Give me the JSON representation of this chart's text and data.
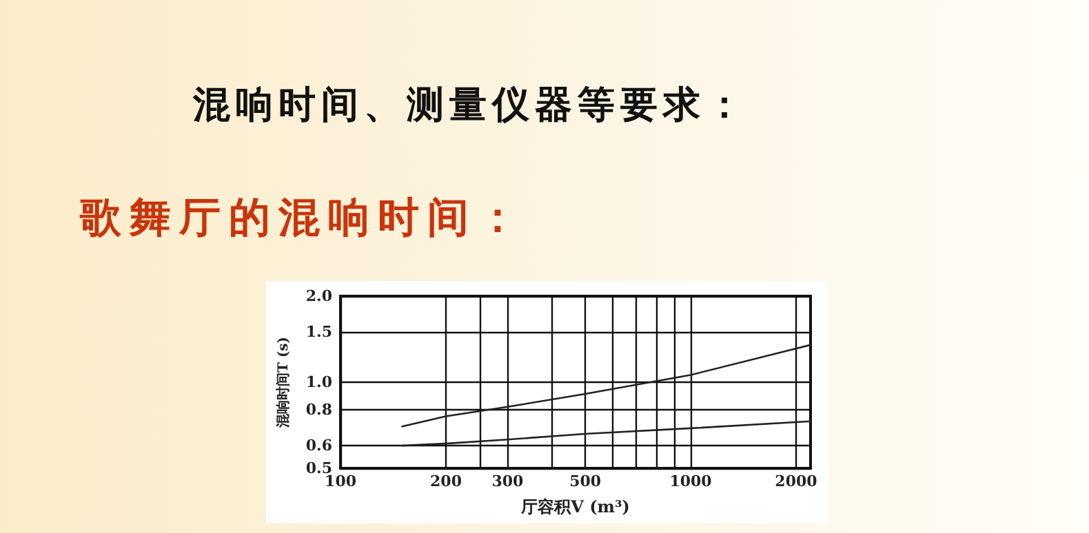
{
  "chart_data": {
    "type": "line",
    "title": "混响时间、测量仪器等要求：",
    "subtitle": "歌舞厅的混响时间：",
    "xlabel": "厅容积V (m³)",
    "ylabel": "混响时间T (s)",
    "log": "xy",
    "xlim": [
      100,
      2200
    ],
    "ylim": [
      0.5,
      2.0
    ],
    "xticks": [
      100,
      200,
      {
        "value": 250,
        "label": null
      },
      300,
      {
        "value": 400,
        "label": null
      },
      500,
      {
        "value": 600,
        "label": null
      },
      {
        "value": 700,
        "label": null
      },
      {
        "value": 800,
        "label": null
      },
      {
        "value": 900,
        "label": null
      },
      1000,
      2000
    ],
    "yticks": [
      0.5,
      0.6,
      0.8,
      {
        "value": 1,
        "label": "1.0"
      },
      1.5,
      {
        "value": 2,
        "label": "2.0"
      }
    ],
    "grid": true,
    "marker": "none",
    "line_style": "solid",
    "series": [
      {
        "color": "#222222",
        "x": [
          150,
          200,
          300,
          500,
          1000,
          2200
        ],
        "values": [
          0.7,
          0.76,
          0.82,
          0.91,
          1.06,
          1.35
        ]
      },
      {
        "color": "#222222",
        "x": [
          150,
          200,
          300,
          500,
          1000,
          2200
        ],
        "values": [
          0.6,
          0.61,
          0.63,
          0.66,
          0.69,
          0.73
        ]
      }
    ]
  }
}
